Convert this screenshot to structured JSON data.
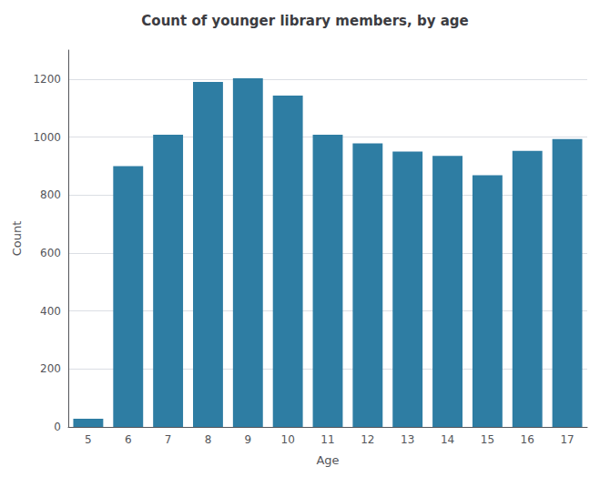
{
  "chart_data": {
    "type": "bar",
    "title": "Count of younger library members, by age",
    "xlabel": "Age",
    "ylabel": "Count",
    "categories": [
      "5",
      "6",
      "7",
      "8",
      "9",
      "10",
      "11",
      "12",
      "13",
      "14",
      "15",
      "16",
      "17"
    ],
    "values": [
      28,
      900,
      1008,
      1190,
      1203,
      1143,
      1008,
      978,
      950,
      935,
      868,
      952,
      993
    ],
    "color": "#2e7da3",
    "ylim": [
      0,
      1300
    ],
    "yticks": [
      0,
      200,
      400,
      600,
      800,
      1000,
      1200
    ],
    "grid": true
  }
}
